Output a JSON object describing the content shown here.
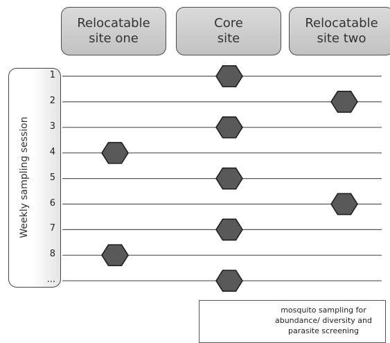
{
  "sites": [
    {
      "line1": "Relocatable",
      "line2": "site one"
    },
    {
      "line1": "Core",
      "line2": "site"
    },
    {
      "line1": "Relocatable",
      "line2": "site two"
    }
  ],
  "axis_label": "Weekly sampling session",
  "sessions": [
    {
      "label": "1",
      "site_index": 1
    },
    {
      "label": "2",
      "site_index": 2
    },
    {
      "label": "3",
      "site_index": 1
    },
    {
      "label": "4",
      "site_index": 0
    },
    {
      "label": "5",
      "site_index": 1
    },
    {
      "label": "6",
      "site_index": 2
    },
    {
      "label": "7",
      "site_index": 1
    },
    {
      "label": "8",
      "site_index": 0
    },
    {
      "label": "...",
      "site_index": 1
    }
  ],
  "legend": {
    "lines": [
      "mosquito sampling for",
      "abundance/ diversity and",
      "parasite screening"
    ]
  },
  "colors": {
    "hexagon_fill": "#595959",
    "hexagon_stroke": "#1a1a1a",
    "line_color": "#555555"
  }
}
